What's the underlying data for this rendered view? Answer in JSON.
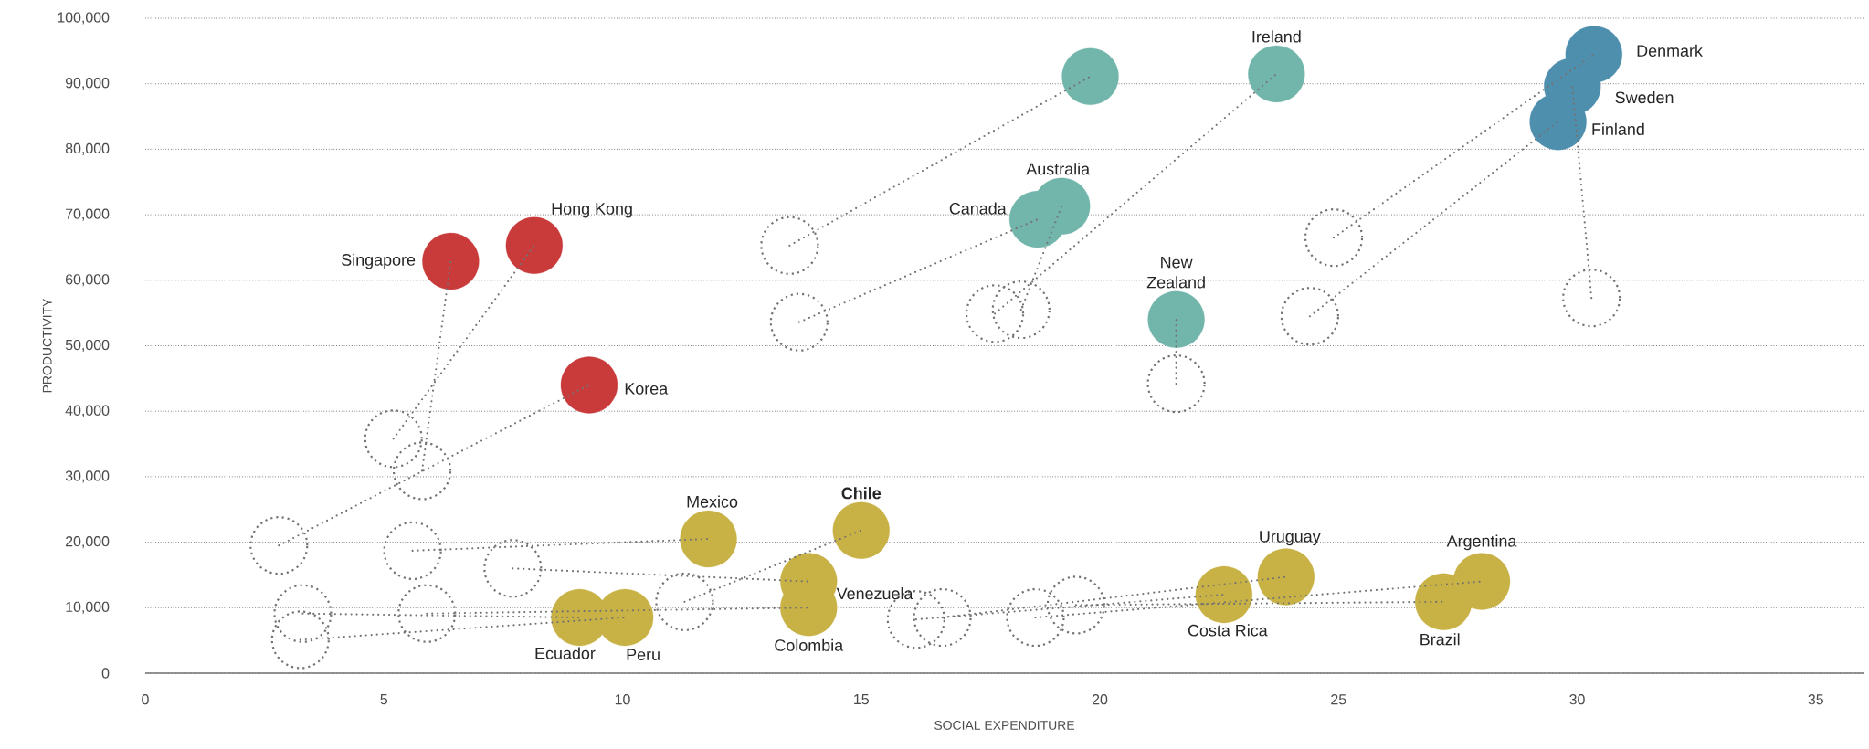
{
  "chart_data": {
    "type": "bubble",
    "xlabel": "SOCIAL EXPENDITURE",
    "ylabel": "PRODUCTIVITY",
    "xlim": [
      0,
      36
    ],
    "ylim": [
      0,
      100000
    ],
    "xticks": [
      0,
      5,
      10,
      15,
      20,
      25,
      30,
      35
    ],
    "yticks": [
      0,
      {
        "value": 10000,
        "label": "10,000"
      },
      {
        "value": 20000,
        "label": "20,000"
      },
      {
        "value": 30000,
        "label": "30,000"
      },
      {
        "value": 40000,
        "label": "40,000"
      },
      {
        "value": 50000,
        "label": "50,000"
      },
      {
        "value": 60000,
        "label": "60,000"
      },
      {
        "value": 70000,
        "label": "70,000"
      },
      {
        "value": 80000,
        "label": "80,000"
      },
      {
        "value": 90000,
        "label": "90,000"
      },
      {
        "value": 100000,
        "label": "100,000"
      }
    ],
    "grid": "y",
    "series": [
      {
        "color": "#737373",
        "line_style": "dotted",
        "x": [
          5.8,
          5.2,
          2.8,
          13.5,
          13.7,
          18.35,
          17.8,
          21.6,
          24.9,
          30.3,
          24.4,
          5.6,
          11.3,
          7.7,
          5.9,
          3.3,
          3.25,
          16.15,
          16.7,
          19.5,
          18.65
        ],
        "values": [
          30900,
          35800,
          19500,
          65300,
          53600,
          55500,
          54900,
          44200,
          66500,
          57300,
          54500,
          18700,
          10900,
          16000,
          9100,
          9100,
          5100,
          8200,
          8500,
          10400,
          8500
        ],
        "sizes": [
          1,
          1,
          1,
          1,
          1,
          1,
          1,
          1,
          1,
          1,
          1,
          1,
          1,
          1,
          1,
          1,
          1,
          1,
          1,
          1,
          1
        ]
      },
      {
        "type": "line",
        "color": "#737373",
        "line_style": "dotted",
        "x": [
          5.8,
          6.4
        ],
        "values": [
          30900,
          62900
        ]
      },
      {
        "type": "line",
        "color": "#737373",
        "line_style": "dotted",
        "x": [
          5.2,
          8.15
        ],
        "values": [
          35800,
          65300
        ]
      },
      {
        "type": "line",
        "color": "#737373",
        "line_style": "dotted",
        "x": [
          2.8,
          9.3
        ],
        "values": [
          19500,
          44000
        ]
      },
      {
        "type": "line",
        "color": "#737373",
        "line_style": "dotted",
        "x": [
          13.5,
          19.8
        ],
        "values": [
          65300,
          91100
        ]
      },
      {
        "type": "line",
        "color": "#737373",
        "line_style": "dotted",
        "x": [
          13.7,
          18.7
        ],
        "values": [
          53600,
          69300
        ]
      },
      {
        "type": "line",
        "color": "#737373",
        "line_style": "dotted",
        "x": [
          18.35,
          19.2
        ],
        "values": [
          55500,
          71300
        ]
      },
      {
        "type": "line",
        "color": "#737373",
        "line_style": "dotted",
        "x": [
          17.8,
          23.7
        ],
        "values": [
          54900,
          91500
        ]
      },
      {
        "type": "line",
        "color": "#737373",
        "line_style": "dotted",
        "x": [
          21.6,
          21.6
        ],
        "values": [
          44200,
          54000
        ]
      },
      {
        "type": "line",
        "color": "#737373",
        "line_style": "dotted",
        "x": [
          24.9,
          30.35
        ],
        "values": [
          66500,
          94500
        ]
      },
      {
        "type": "line",
        "color": "#737373",
        "line_style": "dotted",
        "x": [
          30.3,
          29.9
        ],
        "values": [
          57300,
          89600
        ]
      },
      {
        "type": "line",
        "color": "#737373",
        "line_style": "dotted",
        "x": [
          24.4,
          29.6
        ],
        "values": [
          54500,
          84200
        ]
      },
      {
        "type": "line",
        "color": "#737373",
        "line_style": "dotted",
        "x": [
          5.6,
          11.8
        ],
        "values": [
          18700,
          20500
        ]
      },
      {
        "type": "line",
        "color": "#737373",
        "line_style": "dotted",
        "x": [
          11.3,
          15.0
        ],
        "values": [
          10900,
          21800
        ]
      },
      {
        "type": "line",
        "color": "#737373",
        "line_style": "dotted",
        "x": [
          7.7,
          13.9
        ],
        "values": [
          16000,
          14000
        ]
      },
      {
        "type": "line",
        "color": "#737373",
        "line_style": "dotted",
        "x": [
          5.9,
          13.9
        ],
        "values": [
          9100,
          10000
        ]
      },
      {
        "type": "line",
        "color": "#737373",
        "line_style": "dotted",
        "x": [
          3.3,
          9.1
        ],
        "values": [
          9100,
          8500
        ]
      },
      {
        "type": "line",
        "color": "#737373",
        "line_style": "dotted",
        "x": [
          3.25,
          10.05
        ],
        "values": [
          5100,
          8500
        ]
      },
      {
        "type": "line",
        "color": "#737373",
        "line_style": "dotted",
        "x": [
          16.15,
          22.6
        ],
        "values": [
          8200,
          12000
        ]
      },
      {
        "type": "line",
        "color": "#737373",
        "line_style": "dotted",
        "x": [
          16.7,
          23.9
        ],
        "values": [
          8500,
          14700
        ]
      },
      {
        "type": "line",
        "color": "#737373",
        "line_style": "dotted",
        "x": [
          19.5,
          27.2
        ],
        "values": [
          10400,
          10900
        ]
      },
      {
        "type": "line",
        "color": "#737373",
        "line_style": "dotted",
        "x": [
          18.65,
          28.0
        ],
        "values": [
          8500,
          14000
        ]
      },
      {
        "colors": [
          "#c93b3b",
          "#c93b3b",
          "#c93b3b",
          "#72b5ab",
          "#72b5ab",
          "#72b5ab",
          "#72b5ab",
          "#72b5ab",
          "#4f8fae",
          "#4f8fae",
          "#4f8fae",
          "#c8b145",
          "#c8b145",
          "#c8b145",
          "#c8b145",
          "#c8b145",
          "#c8b145",
          "#c8b145",
          "#c8b145",
          "#c8b145",
          "#c8b145"
        ],
        "x": [
          6.4,
          8.15,
          9.3,
          19.8,
          18.7,
          19.2,
          23.7,
          21.6,
          30.35,
          29.9,
          29.6,
          11.8,
          15.0,
          13.9,
          13.9,
          9.1,
          10.05,
          22.6,
          23.9,
          27.2,
          28.0
        ],
        "values": [
          62900,
          65300,
          44000,
          91100,
          69300,
          71300,
          91500,
          54000,
          94500,
          89600,
          84200,
          20500,
          21800,
          14000,
          10000,
          8500,
          8500,
          12000,
          14700,
          10900,
          14000
        ],
        "sizes": [
          1,
          1,
          1,
          1,
          1,
          1,
          1,
          1,
          1,
          1,
          1,
          1,
          1,
          1,
          1,
          1,
          1,
          1,
          1,
          1,
          1
        ]
      }
    ],
    "annotations": [
      {
        "text": "Singapore",
        "x": 6.4,
        "y": 62900
      },
      {
        "text": "Hong Kong",
        "x": 8.15,
        "y": 65300
      },
      {
        "text": "Korea",
        "x": 9.3,
        "y": 44000
      },
      {
        "text": "Canada",
        "x": 18.7,
        "y": 69300
      },
      {
        "text": "Australia",
        "x": 19.2,
        "y": 71300
      },
      {
        "text": "Ireland",
        "x": 23.7,
        "y": 91500
      },
      {
        "text": "New Zealand",
        "x": 21.6,
        "y": 54000
      },
      {
        "text": "Denmark",
        "x": 30.35,
        "y": 94500
      },
      {
        "text": "Sweden",
        "x": 29.9,
        "y": 89600
      },
      {
        "text": "Finland",
        "x": 29.6,
        "y": 84200
      },
      {
        "text": "Mexico",
        "x": 11.8,
        "y": 20500
      },
      {
        "text": "**Chile**",
        "x": 15.0,
        "y": 21800
      },
      {
        "text": "Venezuela",
        "x": 13.9,
        "y": 14000
      },
      {
        "text": "Colombia",
        "x": 13.9,
        "y": 10000
      },
      {
        "text": "Ecuador",
        "x": 9.1,
        "y": 8500
      },
      {
        "text": "Peru",
        "x": 10.05,
        "y": 8500
      },
      {
        "text": "Costa Rica",
        "x": 22.6,
        "y": 12000
      },
      {
        "text": "Uruguay",
        "x": 23.9,
        "y": 14700
      },
      {
        "text": "Brazil",
        "x": 27.2,
        "y": 10900
      },
      {
        "text": "Argentina",
        "x": 28.0,
        "y": 14000
      }
    ]
  }
}
